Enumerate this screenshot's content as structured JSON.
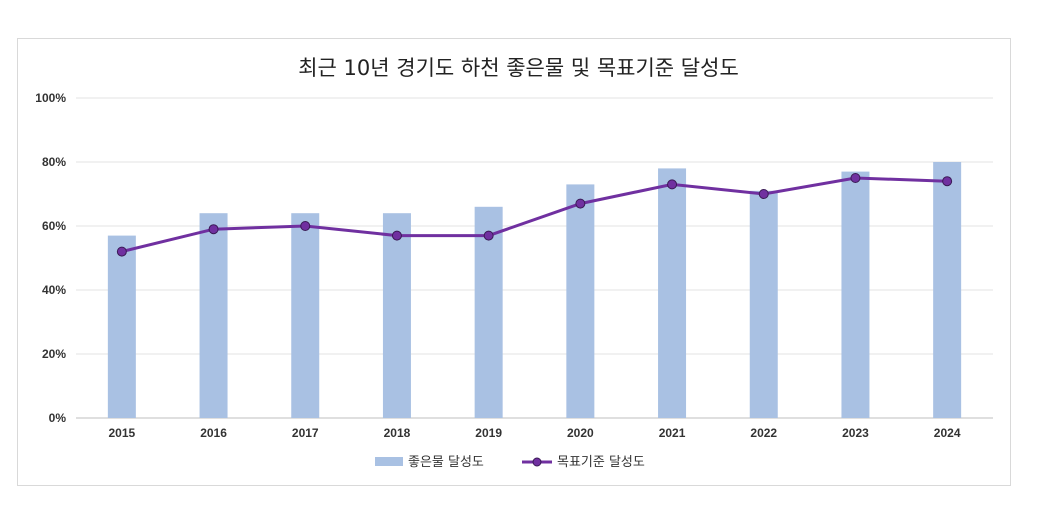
{
  "chart_data": {
    "type": "bar+line",
    "title": "최근 10년 경기도 하천 좋은물 및 목표기준 달성도",
    "categories": [
      "2015",
      "2016",
      "2017",
      "2018",
      "2019",
      "2020",
      "2021",
      "2022",
      "2023",
      "2024"
    ],
    "series": [
      {
        "name": "좋은물 달성도",
        "type": "bar",
        "color": "#a9c1e3",
        "values": [
          57,
          64,
          64,
          64,
          66,
          73,
          78,
          71,
          77,
          80
        ]
      },
      {
        "name": "목표기준 달성도",
        "type": "line",
        "color": "#7030a0",
        "values": [
          52,
          59,
          60,
          57,
          57,
          67,
          73,
          70,
          75,
          74
        ]
      }
    ],
    "ylim": [
      0,
      100
    ],
    "yticks": [
      "0%",
      "20%",
      "40%",
      "60%",
      "80%",
      "100%"
    ],
    "grid": true,
    "legend": "bottom"
  }
}
